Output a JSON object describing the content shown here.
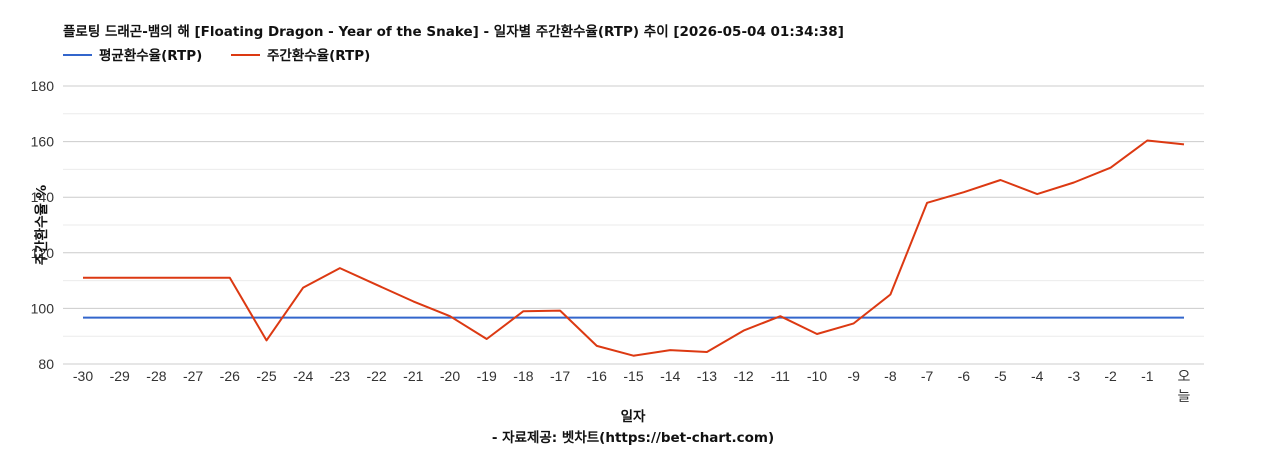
{
  "colors": {
    "avg": "#3366cc",
    "weekly": "#dc3912"
  },
  "chart_data": {
    "type": "line",
    "title": "플로팅 드래곤-뱀의 해 [Floating Dragon - Year of the Snake] - 일자별 주간환수율(RTP) 추이 [2026-05-04 01:34:38]",
    "xlabel": "일자",
    "ylabel": "주간환수율 %",
    "source": "- 자료제공: 벳차트(https://bet-chart.com)",
    "legend_position": "top-left",
    "grid": true,
    "ylim": [
      80,
      180
    ],
    "yticks": [
      "80",
      "100",
      "120",
      "140",
      "160",
      "180"
    ],
    "categories": [
      "-30",
      "-29",
      "-28",
      "-27",
      "-26",
      "-25",
      "-24",
      "-23",
      "-22",
      "-21",
      "-20",
      "-19",
      "-18",
      "-17",
      "-16",
      "-15",
      "-14",
      "-13",
      "-12",
      "-11",
      "-10",
      "-9",
      "-8",
      "-7",
      "-6",
      "-5",
      "-4",
      "-3",
      "-2",
      "-1",
      "오늘"
    ],
    "series": [
      {
        "name": "평균환수율(RTP)",
        "color": "#3366cc",
        "values": [
          96.7,
          96.7,
          96.7,
          96.7,
          96.7,
          96.7,
          96.7,
          96.7,
          96.7,
          96.7,
          96.7,
          96.7,
          96.7,
          96.7,
          96.7,
          96.7,
          96.7,
          96.7,
          96.7,
          96.7,
          96.7,
          96.7,
          96.7,
          96.7,
          96.7,
          96.7,
          96.7,
          96.7,
          96.7,
          96.7,
          96.7
        ]
      },
      {
        "name": "주간환수율(RTP)",
        "color": "#dc3912",
        "values": [
          111,
          111,
          111,
          111,
          111,
          88.5,
          107.5,
          114.5,
          108.5,
          102.5,
          97.2,
          89,
          99,
          99.2,
          86.5,
          83,
          85,
          84.3,
          92,
          97.2,
          90.8,
          94.6,
          105,
          138,
          141.8,
          146.2,
          141.1,
          145.3,
          150.6,
          160.4,
          159
        ]
      }
    ]
  }
}
